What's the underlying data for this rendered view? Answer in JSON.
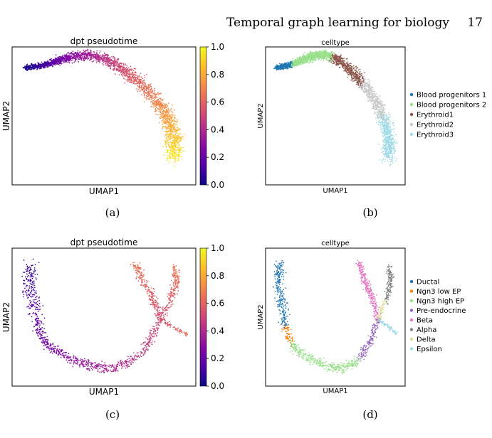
{
  "header": {
    "running_title": "Temporal graph learning for biology",
    "page_number": "17"
  },
  "palette": {
    "plasma": [
      "#0d0887",
      "#5302a3",
      "#8b0aa5",
      "#b83289",
      "#db5c68",
      "#f48849",
      "#febd2a",
      "#f0f921"
    ],
    "celltype_a": [
      "#1f77b4",
      "#98df8a",
      "#8c564b",
      "#c7c7c7",
      "#9edae5"
    ],
    "celltype_b": [
      "#1f77b4",
      "#ff7f0e",
      "#98df8a",
      "#9467bd",
      "#e377c2",
      "#7f7f7f",
      "#dbdb8d",
      "#9edae5"
    ]
  },
  "panels": [
    {
      "id": "a",
      "caption": "(a)"
    },
    {
      "id": "b",
      "caption": "(b)"
    },
    {
      "id": "c",
      "caption": "(c)"
    },
    {
      "id": "d",
      "caption": "(d)"
    }
  ],
  "chart_data": [
    {
      "type": "scatter",
      "panel": "a",
      "title": "dpt pseudotime",
      "xlabel": "UMAP1",
      "ylabel": "UMAP2",
      "color_scale": "plasma",
      "colorbar": {
        "range": [
          0,
          1.0
        ],
        "ticks": [
          "0.0",
          "0.2",
          "0.4",
          "0.6",
          "0.8",
          "1.0"
        ]
      },
      "density": 2600
    },
    {
      "type": "scatter",
      "panel": "b",
      "title": "celltype",
      "xlabel": "UMAP1",
      "ylabel": "UMAP2",
      "series": [
        {
          "name": "Blood progenitors 1",
          "color": "#1f77b4"
        },
        {
          "name": "Blood progenitors 2",
          "color": "#98df8a"
        },
        {
          "name": "Erythroid1",
          "color": "#8c564b"
        },
        {
          "name": "Erythroid2",
          "color": "#c7c7c7"
        },
        {
          "name": "Erythroid3",
          "color": "#9edae5"
        }
      ],
      "density": 2600
    },
    {
      "type": "scatter",
      "panel": "c",
      "title": "dpt pseudotime",
      "xlabel": "UMAP1",
      "ylabel": "UMAP2",
      "color_scale": "plasma",
      "colorbar": {
        "range": [
          0,
          1.0
        ],
        "ticks": [
          "0.0",
          "0.2",
          "0.4",
          "0.6",
          "0.8",
          "1.0"
        ]
      },
      "density": 1400
    },
    {
      "type": "scatter",
      "panel": "d",
      "title": "celltype",
      "xlabel": "UMAP1",
      "ylabel": "UMAP2",
      "series": [
        {
          "name": "Ductal",
          "color": "#1f77b4"
        },
        {
          "name": "Ngn3 low EP",
          "color": "#ff7f0e"
        },
        {
          "name": "Ngn3 high EP",
          "color": "#98df8a"
        },
        {
          "name": "Pre-endocrine",
          "color": "#9467bd"
        },
        {
          "name": "Beta",
          "color": "#e377c2"
        },
        {
          "name": "Alpha",
          "color": "#7f7f7f"
        },
        {
          "name": "Delta",
          "color": "#dbdb8d"
        },
        {
          "name": "Epsilon",
          "color": "#9edae5"
        }
      ],
      "density": 1400
    }
  ]
}
